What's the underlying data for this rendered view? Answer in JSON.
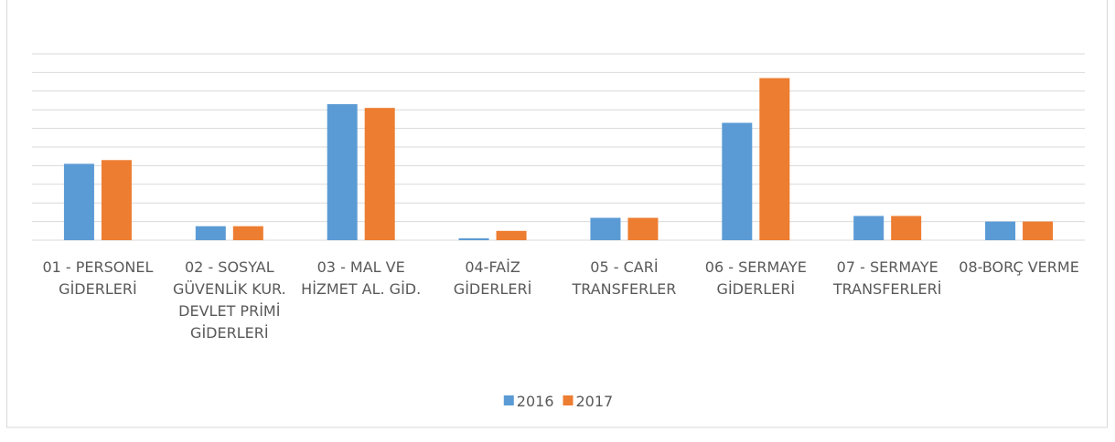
{
  "chart_data": {
    "type": "bar",
    "categories": [
      "01 - PERSONEL GİDERLERİ",
      "02 - SOSYAL GÜVENLİK KUR. DEVLET PRİMİ GİDERLERİ",
      "03 - MAL VE HİZMET AL. GİD.",
      "04-FAİZ GİDERLERİ",
      "05 - CARİ TRANSFERLER",
      "06 - SERMAYE GİDERLERİ",
      "07 - SERMAYE TRANSFERLERİ",
      "08-BORÇ VERME"
    ],
    "series": [
      {
        "name": "2016",
        "color": "#5b9bd5",
        "values": [
          4.1,
          0.75,
          7.3,
          0.1,
          1.2,
          6.3,
          1.3,
          1.0
        ]
      },
      {
        "name": "2017",
        "color": "#ed7d31",
        "values": [
          4.3,
          0.75,
          7.1,
          0.5,
          1.2,
          8.7,
          1.3,
          1.0
        ]
      }
    ],
    "ylim": [
      0,
      10
    ],
    "yticks": [
      0,
      1,
      2,
      3,
      4,
      5,
      6,
      7,
      8,
      9,
      10
    ],
    "grid": true,
    "legend": "bottom"
  }
}
